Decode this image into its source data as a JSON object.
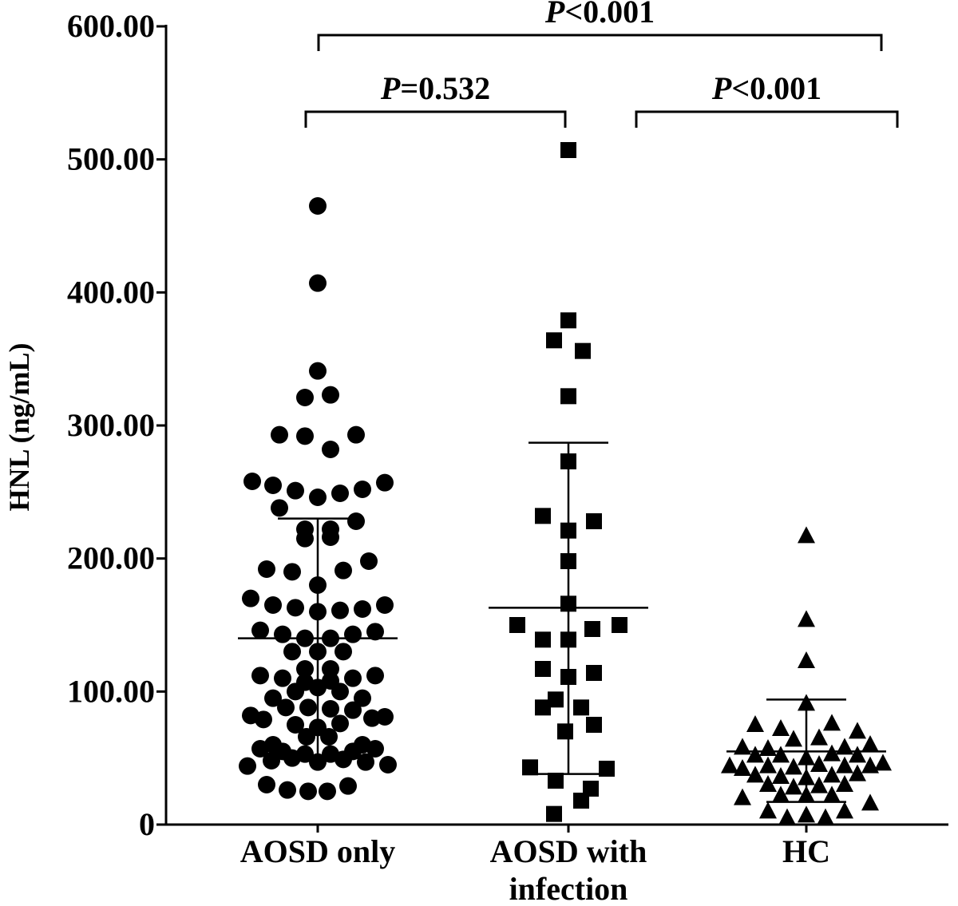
{
  "chart_data": {
    "type": "scatter",
    "ylabel": "HNL (ng/mL)",
    "ylim": [
      0,
      600
    ],
    "yticks": [
      {
        "value": 0,
        "label": "0"
      },
      {
        "value": 100,
        "label": "100.00"
      },
      {
        "value": 200,
        "label": "200.00"
      },
      {
        "value": 300,
        "label": "300.00"
      },
      {
        "value": 400,
        "label": "400.00"
      },
      {
        "value": 500,
        "label": "500.00"
      },
      {
        "value": 600,
        "label": "600.00"
      }
    ],
    "groups": [
      {
        "label_lines": [
          "AOSD only"
        ],
        "marker": "circle",
        "mean": 140,
        "sd_low": 50,
        "sd_high": 230,
        "points": [
          {
            "dx": 0,
            "y": 465
          },
          {
            "dx": 0,
            "y": 407
          },
          {
            "dx": 0,
            "y": 341
          },
          {
            "dx": -16,
            "y": 321
          },
          {
            "dx": 16,
            "y": 323
          },
          {
            "dx": -48,
            "y": 293
          },
          {
            "dx": -16,
            "y": 292
          },
          {
            "dx": 16,
            "y": 282
          },
          {
            "dx": 48,
            "y": 293
          },
          {
            "dx": -82,
            "y": 258
          },
          {
            "dx": -56,
            "y": 255
          },
          {
            "dx": -28,
            "y": 251
          },
          {
            "dx": 0,
            "y": 246
          },
          {
            "dx": 28,
            "y": 249
          },
          {
            "dx": 56,
            "y": 252
          },
          {
            "dx": 84,
            "y": 257
          },
          {
            "dx": -48,
            "y": 238
          },
          {
            "dx": -16,
            "y": 222
          },
          {
            "dx": 16,
            "y": 222
          },
          {
            "dx": 48,
            "y": 228
          },
          {
            "dx": -16,
            "y": 215
          },
          {
            "dx": 16,
            "y": 216
          },
          {
            "dx": -64,
            "y": 192
          },
          {
            "dx": -32,
            "y": 190
          },
          {
            "dx": 32,
            "y": 191
          },
          {
            "dx": 64,
            "y": 198
          },
          {
            "dx": 0,
            "y": 180
          },
          {
            "dx": -84,
            "y": 170
          },
          {
            "dx": -56,
            "y": 165
          },
          {
            "dx": -28,
            "y": 163
          },
          {
            "dx": 0,
            "y": 160
          },
          {
            "dx": 28,
            "y": 161
          },
          {
            "dx": 56,
            "y": 162
          },
          {
            "dx": 84,
            "y": 165
          },
          {
            "dx": -72,
            "y": 146
          },
          {
            "dx": -44,
            "y": 143
          },
          {
            "dx": -16,
            "y": 140
          },
          {
            "dx": 16,
            "y": 140
          },
          {
            "dx": 44,
            "y": 143
          },
          {
            "dx": 72,
            "y": 145
          },
          {
            "dx": -32,
            "y": 130
          },
          {
            "dx": 0,
            "y": 130
          },
          {
            "dx": 32,
            "y": 130
          },
          {
            "dx": -16,
            "y": 117
          },
          {
            "dx": 16,
            "y": 117
          },
          {
            "dx": -72,
            "y": 112
          },
          {
            "dx": -44,
            "y": 110
          },
          {
            "dx": -16,
            "y": 107
          },
          {
            "dx": 16,
            "y": 108
          },
          {
            "dx": 44,
            "y": 110
          },
          {
            "dx": 72,
            "y": 112
          },
          {
            "dx": -28,
            "y": 100
          },
          {
            "dx": 0,
            "y": 103
          },
          {
            "dx": 28,
            "y": 100
          },
          {
            "dx": -56,
            "y": 95
          },
          {
            "dx": 56,
            "y": 95
          },
          {
            "dx": -40,
            "y": 88
          },
          {
            "dx": -12,
            "y": 88
          },
          {
            "dx": 16,
            "y": 87
          },
          {
            "dx": 44,
            "y": 86
          },
          {
            "dx": -84,
            "y": 82
          },
          {
            "dx": 84,
            "y": 81
          },
          {
            "dx": -68,
            "y": 79
          },
          {
            "dx": 68,
            "y": 80
          },
          {
            "dx": -28,
            "y": 75
          },
          {
            "dx": 0,
            "y": 73
          },
          {
            "dx": 28,
            "y": 76
          },
          {
            "dx": -14,
            "y": 66
          },
          {
            "dx": 14,
            "y": 66
          },
          {
            "dx": -56,
            "y": 60
          },
          {
            "dx": 56,
            "y": 60
          },
          {
            "dx": -72,
            "y": 57
          },
          {
            "dx": -44,
            "y": 55
          },
          {
            "dx": -16,
            "y": 53
          },
          {
            "dx": 16,
            "y": 53
          },
          {
            "dx": 44,
            "y": 55
          },
          {
            "dx": 72,
            "y": 57
          },
          {
            "dx": -32,
            "y": 50
          },
          {
            "dx": 0,
            "y": 47
          },
          {
            "dx": 32,
            "y": 49
          },
          {
            "dx": -88,
            "y": 44
          },
          {
            "dx": -58,
            "y": 48
          },
          {
            "dx": 60,
            "y": 47
          },
          {
            "dx": 88,
            "y": 45
          },
          {
            "dx": -64,
            "y": 30
          },
          {
            "dx": -38,
            "y": 26
          },
          {
            "dx": -12,
            "y": 25
          },
          {
            "dx": 12,
            "y": 25
          },
          {
            "dx": 38,
            "y": 29
          }
        ]
      },
      {
        "label_lines": [
          "AOSD with",
          "infection"
        ],
        "marker": "square",
        "mean": 163,
        "sd_low": 38,
        "sd_high": 287,
        "points": [
          {
            "dx": 0,
            "y": 507
          },
          {
            "dx": 0,
            "y": 379
          },
          {
            "dx": -18,
            "y": 364
          },
          {
            "dx": 18,
            "y": 356
          },
          {
            "dx": 0,
            "y": 322
          },
          {
            "dx": 0,
            "y": 273
          },
          {
            "dx": -32,
            "y": 232
          },
          {
            "dx": 32,
            "y": 228
          },
          {
            "dx": 0,
            "y": 221
          },
          {
            "dx": 0,
            "y": 198
          },
          {
            "dx": 0,
            "y": 166
          },
          {
            "dx": -64,
            "y": 150
          },
          {
            "dx": 30,
            "y": 147
          },
          {
            "dx": 64,
            "y": 150
          },
          {
            "dx": -32,
            "y": 139
          },
          {
            "dx": 0,
            "y": 139
          },
          {
            "dx": -32,
            "y": 117
          },
          {
            "dx": 32,
            "y": 114
          },
          {
            "dx": 0,
            "y": 111
          },
          {
            "dx": -16,
            "y": 94
          },
          {
            "dx": -32,
            "y": 88
          },
          {
            "dx": 16,
            "y": 88
          },
          {
            "dx": 32,
            "y": 75
          },
          {
            "dx": -4,
            "y": 70
          },
          {
            "dx": -48,
            "y": 43
          },
          {
            "dx": 48,
            "y": 42
          },
          {
            "dx": -16,
            "y": 33
          },
          {
            "dx": 28,
            "y": 27
          },
          {
            "dx": 16,
            "y": 18
          },
          {
            "dx": -18,
            "y": 8
          }
        ]
      },
      {
        "label_lines": [
          "HC"
        ],
        "marker": "triangle",
        "mean": 55,
        "sd_low": 17,
        "sd_high": 94,
        "points": [
          {
            "dx": 0,
            "y": 217
          },
          {
            "dx": 0,
            "y": 154
          },
          {
            "dx": 0,
            "y": 123
          },
          {
            "dx": 0,
            "y": 91
          },
          {
            "dx": -64,
            "y": 75
          },
          {
            "dx": -32,
            "y": 72
          },
          {
            "dx": 32,
            "y": 76
          },
          {
            "dx": 64,
            "y": 70
          },
          {
            "dx": -16,
            "y": 64
          },
          {
            "dx": 16,
            "y": 65
          },
          {
            "dx": -80,
            "y": 58
          },
          {
            "dx": -48,
            "y": 57
          },
          {
            "dx": 48,
            "y": 58
          },
          {
            "dx": 80,
            "y": 60
          },
          {
            "dx": -64,
            "y": 52
          },
          {
            "dx": -32,
            "y": 52
          },
          {
            "dx": 0,
            "y": 50
          },
          {
            "dx": 32,
            "y": 53
          },
          {
            "dx": 64,
            "y": 52
          },
          {
            "dx": -96,
            "y": 44
          },
          {
            "dx": -80,
            "y": 42
          },
          {
            "dx": -48,
            "y": 44
          },
          {
            "dx": -16,
            "y": 43
          },
          {
            "dx": 16,
            "y": 45
          },
          {
            "dx": 48,
            "y": 44
          },
          {
            "dx": 80,
            "y": 44
          },
          {
            "dx": 96,
            "y": 46
          },
          {
            "dx": -64,
            "y": 37
          },
          {
            "dx": -32,
            "y": 36
          },
          {
            "dx": 0,
            "y": 35
          },
          {
            "dx": 32,
            "y": 37
          },
          {
            "dx": 64,
            "y": 38
          },
          {
            "dx": -48,
            "y": 30
          },
          {
            "dx": -16,
            "y": 28
          },
          {
            "dx": 16,
            "y": 29
          },
          {
            "dx": 48,
            "y": 30
          },
          {
            "dx": -80,
            "y": 20
          },
          {
            "dx": -32,
            "y": 22
          },
          {
            "dx": 0,
            "y": 22
          },
          {
            "dx": 32,
            "y": 22
          },
          {
            "dx": 80,
            "y": 16
          },
          {
            "dx": -48,
            "y": 10
          },
          {
            "dx": 48,
            "y": 10
          },
          {
            "dx": 0,
            "y": 7
          },
          {
            "dx": -24,
            "y": 5
          },
          {
            "dx": 24,
            "y": 5
          }
        ]
      }
    ],
    "comparisons": [
      {
        "from": 0,
        "to": 1,
        "p_italic": "P",
        "p_rest": "=0.532",
        "level": 1
      },
      {
        "from": 1,
        "to": 2,
        "p_italic": "P",
        "p_rest": "<0.001",
        "level": 1
      },
      {
        "from": 0,
        "to": 2,
        "p_italic": "P",
        "p_rest": "<0.001",
        "level": 2
      }
    ]
  }
}
